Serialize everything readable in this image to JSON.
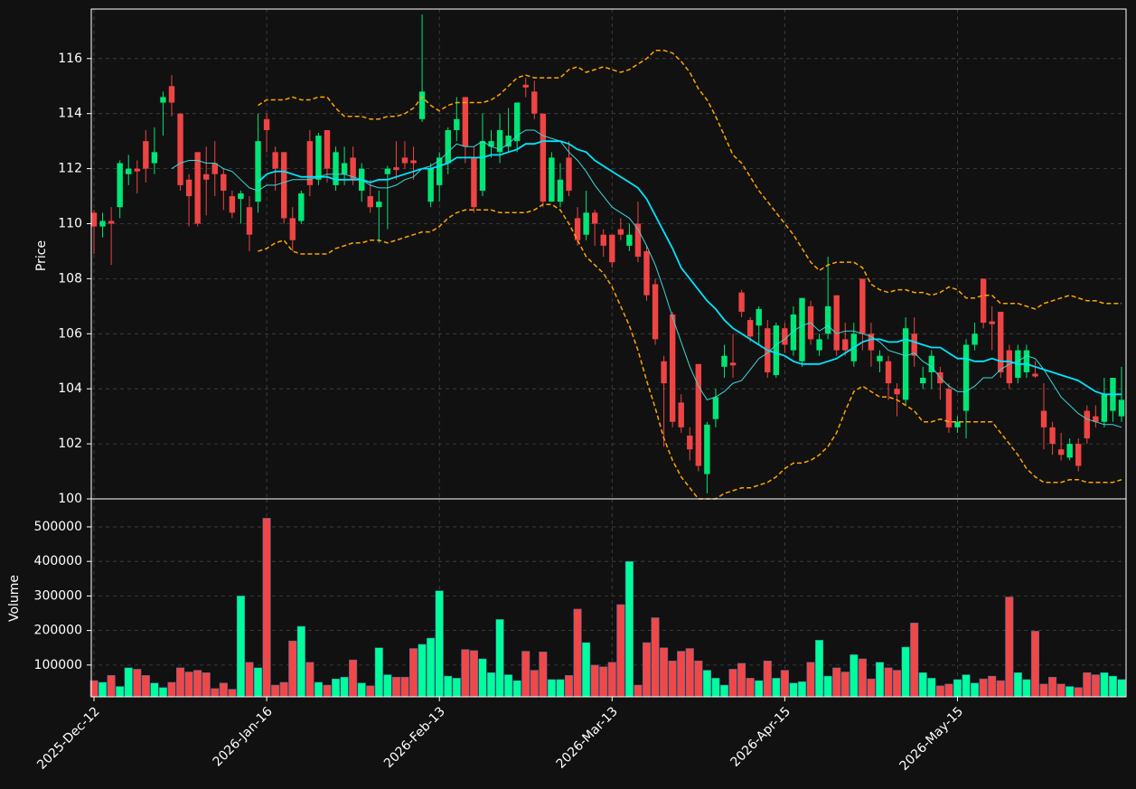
{
  "chart_data": {
    "type": "candlestick",
    "ylabel": "Price",
    "volume_ylabel": "Volume",
    "ylim": [
      100,
      117.8
    ],
    "yticks": [
      100,
      102,
      104,
      106,
      108,
      110,
      112,
      114,
      116
    ],
    "volume_ylim": [
      8000,
      581000
    ],
    "volume_yticks": [
      100000,
      200000,
      300000,
      400000,
      500000
    ],
    "grid": true,
    "up_color": "#00e676",
    "down_color": "#ef4444",
    "volume_up_color": "#00ff9c",
    "volume_down_color": "#f04848",
    "categories": [
      "2025-Dec-12",
      null,
      null,
      null,
      null,
      null,
      null,
      null,
      null,
      null,
      null,
      null,
      null,
      null,
      null,
      null,
      null,
      null,
      null,
      null,
      "2026-Jan-16",
      null,
      null,
      null,
      null,
      null,
      null,
      null,
      null,
      null,
      null,
      null,
      null,
      null,
      null,
      null,
      null,
      null,
      null,
      null,
      "2026-Feb-13",
      null,
      null,
      null,
      null,
      null,
      null,
      null,
      null,
      null,
      null,
      null,
      null,
      null,
      null,
      null,
      null,
      null,
      null,
      null,
      "2026-Mar-13",
      null,
      null,
      null,
      null,
      null,
      null,
      null,
      null,
      null,
      null,
      null,
      null,
      null,
      null,
      null,
      null,
      null,
      null,
      null,
      "2026-Apr-15",
      null,
      null,
      null,
      null,
      null,
      null,
      null,
      null,
      null,
      null,
      null,
      null,
      null,
      null,
      null,
      null,
      null,
      null,
      null,
      "2026-May-15",
      null,
      null,
      null,
      null,
      null,
      null,
      null,
      null,
      null,
      null,
      null,
      null,
      null,
      null,
      null,
      null,
      null,
      null,
      null
    ],
    "open": [
      110.4,
      109.9,
      110.1,
      110.6,
      111.8,
      112.0,
      113.0,
      112.2,
      114.4,
      115.0,
      114.0,
      111.6,
      112.6,
      111.8,
      112.2,
      111.8,
      111.0,
      110.9,
      110.6,
      110.8,
      113.8,
      112.6,
      112.6,
      110.2,
      110.1,
      113.0,
      111.6,
      113.4,
      111.4,
      111.8,
      112.4,
      111.2,
      111.0,
      110.6,
      111.8,
      112.05,
      112.4,
      112.3,
      113.8,
      110.8,
      111.4,
      112.2,
      113.4,
      114.6,
      112.4,
      111.2,
      112.8,
      112.6,
      112.8,
      113.0,
      115.05,
      114.8,
      114.0,
      110.8,
      110.8,
      112.4,
      110.2,
      109.6,
      110.4,
      109.6,
      109.6,
      109.8,
      109.2,
      110.0,
      109.0,
      107.8,
      105.0,
      106.7,
      103.5,
      102.3,
      104.9,
      100.9,
      102.9,
      104.8,
      104.95,
      107.5,
      106.5,
      106.3,
      106.2,
      104.5,
      106.2,
      105.4,
      105.0,
      107.0,
      105.4,
      106.0,
      107.4,
      105.8,
      105.0,
      108.0,
      106.0,
      105.0,
      105.0,
      104.0,
      103.6,
      106.0,
      104.2,
      104.6,
      104.6,
      104.0,
      102.6,
      103.2,
      105.6,
      108.0,
      106.45,
      106.8,
      105.4,
      104.4,
      104.6,
      104.55,
      103.2,
      102.6,
      101.8,
      101.5,
      102.0,
      103.2,
      103.0,
      102.8,
      103.2,
      103.0
    ],
    "high": [
      110.5,
      110.4,
      110.6,
      112.3,
      112.5,
      112.3,
      113.4,
      113.5,
      114.8,
      115.4,
      114.0,
      111.8,
      112.6,
      112.8,
      113.0,
      112.0,
      111.2,
      111.2,
      111.0,
      114.0,
      114.0,
      112.8,
      112.6,
      110.6,
      111.2,
      113.4,
      113.3,
      113.4,
      112.8,
      112.8,
      112.8,
      112.2,
      111.6,
      111.2,
      112.1,
      113.0,
      113.0,
      112.8,
      117.6,
      112.2,
      112.6,
      113.5,
      114.6,
      114.6,
      112.8,
      114.0,
      113.4,
      114.0,
      114.2,
      114.4,
      115.3,
      115.2,
      114.0,
      112.6,
      112.2,
      113.0,
      110.6,
      111.2,
      110.5,
      109.8,
      109.6,
      110.2,
      110.0,
      110.8,
      109.2,
      108.0,
      105.2,
      106.8,
      103.8,
      102.6,
      104.9,
      102.8,
      104.0,
      105.6,
      106.0,
      107.6,
      106.6,
      107.0,
      106.5,
      106.4,
      106.4,
      107.0,
      107.3,
      107.2,
      106.0,
      108.8,
      107.4,
      106.4,
      106.4,
      108.0,
      106.4,
      105.4,
      105.2,
      104.2,
      106.6,
      106.6,
      104.8,
      105.4,
      104.8,
      104.2,
      103.0,
      105.8,
      106.4,
      108.0,
      107.0,
      106.8,
      105.6,
      105.6,
      105.6,
      105.0,
      104.2,
      102.8,
      102.4,
      102.2,
      102.2,
      103.4,
      103.4,
      104.4,
      104.4,
      104.8
    ],
    "low": [
      108.9,
      109.5,
      108.5,
      110.2,
      111.4,
      111.1,
      111.5,
      111.8,
      113.2,
      113.9,
      111.2,
      109.9,
      109.9,
      110.3,
      111.0,
      110.5,
      110.2,
      110.0,
      109.0,
      110.4,
      112.6,
      111.2,
      110.0,
      109.0,
      110.0,
      111.0,
      111.4,
      111.5,
      111.2,
      111.4,
      111.4,
      110.8,
      110.4,
      109.3,
      109.8,
      111.6,
      112.0,
      111.6,
      113.7,
      110.6,
      110.8,
      111.8,
      113.0,
      112.2,
      110.4,
      111.0,
      112.4,
      112.2,
      112.6,
      112.6,
      114.6,
      113.8,
      110.6,
      110.8,
      110.6,
      111.0,
      109.2,
      109.4,
      109.2,
      108.8,
      108.4,
      109.4,
      109.0,
      108.6,
      107.2,
      105.6,
      101.9,
      102.6,
      102.4,
      101.4,
      101.0,
      100.2,
      102.6,
      104.4,
      104.4,
      106.6,
      105.7,
      105.6,
      104.4,
      104.4,
      105.3,
      105.2,
      104.8,
      105.6,
      105.2,
      105.8,
      105.2,
      105.2,
      104.8,
      105.4,
      104.8,
      104.6,
      103.6,
      103.0,
      103.4,
      104.8,
      104.0,
      104.0,
      103.6,
      102.4,
      102.4,
      102.2,
      105.4,
      106.2,
      105.4,
      104.4,
      104.0,
      104.2,
      104.4,
      104.4,
      101.8,
      101.6,
      101.4,
      101.4,
      101.0,
      102.0,
      102.6,
      102.6,
      102.8,
      102.8
    ],
    "close": [
      109.9,
      110.1,
      110.0,
      112.2,
      112.0,
      111.9,
      112.0,
      112.6,
      114.6,
      114.4,
      111.4,
      111.0,
      110.0,
      111.6,
      111.8,
      111.2,
      110.4,
      111.1,
      109.6,
      113.0,
      113.4,
      112.0,
      110.2,
      109.4,
      111.1,
      111.4,
      113.2,
      112.0,
      112.6,
      112.2,
      111.6,
      112.0,
      110.6,
      110.8,
      112.0,
      111.95,
      112.2,
      112.2,
      114.8,
      112.0,
      112.4,
      113.4,
      113.8,
      112.8,
      110.6,
      113.0,
      113.0,
      113.4,
      113.2,
      114.4,
      114.95,
      114.0,
      110.8,
      112.4,
      111.6,
      111.2,
      109.4,
      110.4,
      110.0,
      109.2,
      108.6,
      109.6,
      109.6,
      108.8,
      107.4,
      105.8,
      104.2,
      102.8,
      102.6,
      101.8,
      101.2,
      102.7,
      103.7,
      105.2,
      104.85,
      106.8,
      105.9,
      106.9,
      104.6,
      106.3,
      105.6,
      106.7,
      107.3,
      105.8,
      105.8,
      107.0,
      105.4,
      105.4,
      106.0,
      106.0,
      105.4,
      105.2,
      104.2,
      103.8,
      106.2,
      105.2,
      104.4,
      105.2,
      104.2,
      102.6,
      102.8,
      105.6,
      106.0,
      106.4,
      106.35,
      104.6,
      104.2,
      105.4,
      105.4,
      104.45,
      102.6,
      102.0,
      101.6,
      102.0,
      101.2,
      102.2,
      102.8,
      103.8,
      104.4,
      103.6
    ],
    "volume": [
      55000,
      50000,
      70000,
      38000,
      92000,
      88000,
      70000,
      48000,
      35000,
      50000,
      92000,
      80000,
      85000,
      78000,
      32000,
      48000,
      30000,
      300000,
      108000,
      92000,
      525000,
      42000,
      50000,
      170000,
      212000,
      108000,
      50000,
      42000,
      60000,
      65000,
      115000,
      48000,
      40000,
      150000,
      72000,
      65000,
      65000,
      148000,
      160000,
      178000,
      315000,
      68000,
      62000,
      145000,
      142000,
      118000,
      78000,
      232000,
      72000,
      55000,
      140000,
      85000,
      138000,
      58000,
      58000,
      70000,
      262000,
      165000,
      100000,
      95000,
      108000,
      275000,
      400000,
      42000,
      165000,
      237000,
      150000,
      112000,
      140000,
      148000,
      112000,
      85000,
      62000,
      42000,
      88000,
      105000,
      62000,
      55000,
      112000,
      62000,
      85000,
      48000,
      52000,
      108000,
      172000,
      68000,
      92000,
      80000,
      130000,
      118000,
      60000,
      108000,
      92000,
      85000,
      152000,
      222000,
      78000,
      62000,
      40000,
      45000,
      58000,
      72000,
      48000,
      60000,
      68000,
      55000,
      297000,
      78000,
      58000,
      198000,
      45000,
      65000,
      45000,
      38000,
      35000,
      78000,
      72000,
      78000,
      68000,
      58000
    ],
    "series": [
      {
        "color": "#3ad8d8",
        "linewidth": 1,
        "dash": false,
        "values": [
          null,
          null,
          null,
          null,
          null,
          null,
          null,
          null,
          null,
          112.0,
          112.2,
          112.3,
          112.3,
          112.2,
          112.2,
          112.0,
          111.9,
          111.6,
          111.3,
          111.2,
          111.4,
          111.4,
          111.5,
          111.6,
          111.6,
          111.6,
          111.7,
          111.8,
          111.8,
          111.8,
          111.7,
          111.6,
          111.4,
          111.3,
          111.3,
          111.4,
          111.6,
          111.7,
          112.0,
          112.1,
          112.3,
          112.6,
          112.9,
          112.8,
          112.8,
          113.0,
          112.8,
          112.7,
          112.9,
          113.2,
          113.4,
          113.4,
          113.2,
          113.1,
          113.0,
          112.6,
          112.3,
          111.9,
          111.4,
          111.0,
          110.6,
          110.4,
          110.2,
          109.8,
          109.2,
          108.5,
          107.6,
          106.6,
          105.7,
          104.8,
          104.1,
          103.6,
          103.7,
          103.9,
          104.2,
          104.3,
          104.7,
          105.1,
          105.3,
          105.6,
          105.8,
          106.1,
          106.3,
          106.4,
          106.1,
          106.3,
          106.0,
          106.1,
          106.1,
          106.0,
          105.9,
          105.7,
          105.4,
          105.3,
          105.2,
          105.3,
          105.0,
          104.8,
          104.4,
          104.1,
          103.9,
          103.9,
          104.1,
          104.4,
          104.4,
          104.7,
          104.9,
          105.0,
          105.2,
          105.1,
          104.7,
          104.2,
          103.7,
          103.4,
          103.1,
          102.9,
          102.8,
          102.7,
          102.7,
          102.6
        ]
      },
      {
        "color": "#00e5ff",
        "linewidth": 1.8,
        "dash": false,
        "values": [
          null,
          null,
          null,
          null,
          null,
          null,
          null,
          null,
          null,
          null,
          null,
          null,
          null,
          null,
          null,
          null,
          null,
          null,
          null,
          111.5,
          111.8,
          111.9,
          111.9,
          111.8,
          111.7,
          111.7,
          111.7,
          111.7,
          111.6,
          111.6,
          111.6,
          111.6,
          111.5,
          111.6,
          111.6,
          111.7,
          111.8,
          111.9,
          112.0,
          112.0,
          112.1,
          112.2,
          112.4,
          112.4,
          112.4,
          112.4,
          112.5,
          112.5,
          112.6,
          112.7,
          112.9,
          112.9,
          113.0,
          113.0,
          113.0,
          112.9,
          112.7,
          112.6,
          112.3,
          112.1,
          111.9,
          111.7,
          111.5,
          111.3,
          110.9,
          110.3,
          109.7,
          109.1,
          108.4,
          108.0,
          107.6,
          107.2,
          106.9,
          106.5,
          106.2,
          106.0,
          105.8,
          105.6,
          105.4,
          105.3,
          105.2,
          105.0,
          104.9,
          104.9,
          104.9,
          105.0,
          105.1,
          105.3,
          105.5,
          105.7,
          105.8,
          105.8,
          105.7,
          105.7,
          105.8,
          105.7,
          105.6,
          105.5,
          105.5,
          105.3,
          105.1,
          105.1,
          105.0,
          105.0,
          105.1,
          105.0,
          105.0,
          104.9,
          104.9,
          104.8,
          104.7,
          104.6,
          104.5,
          104.4,
          104.3,
          104.1,
          103.9,
          103.8,
          103.8,
          103.8
        ]
      },
      {
        "color": "#ffa500",
        "linewidth": 1.5,
        "dash": true,
        "values": [
          null,
          null,
          null,
          null,
          null,
          null,
          null,
          null,
          null,
          null,
          null,
          null,
          null,
          null,
          null,
          null,
          null,
          null,
          null,
          114.3,
          114.5,
          114.5,
          114.5,
          114.6,
          114.5,
          114.5,
          114.6,
          114.6,
          114.2,
          113.9,
          113.9,
          113.9,
          113.8,
          113.8,
          113.9,
          113.9,
          114.0,
          114.2,
          114.6,
          114.3,
          114.1,
          114.3,
          114.4,
          114.4,
          114.4,
          114.4,
          114.5,
          114.7,
          115.0,
          115.3,
          115.4,
          115.3,
          115.3,
          115.3,
          115.3,
          115.6,
          115.7,
          115.5,
          115.6,
          115.7,
          115.6,
          115.5,
          115.6,
          115.8,
          116.0,
          116.3,
          116.3,
          116.2,
          115.9,
          115.5,
          114.9,
          114.5,
          113.9,
          113.2,
          112.5,
          112.2,
          111.7,
          111.2,
          110.8,
          110.4,
          110.0,
          109.6,
          109.1,
          108.6,
          108.3,
          108.5,
          108.6,
          108.6,
          108.6,
          108.4,
          107.8,
          107.6,
          107.5,
          107.6,
          107.6,
          107.5,
          107.5,
          107.4,
          107.5,
          107.7,
          107.6,
          107.3,
          107.3,
          107.4,
          107.4,
          107.1,
          107.1,
          107.1,
          107.0,
          106.9,
          107.1,
          107.2,
          107.3,
          107.4,
          107.3,
          107.2,
          107.2,
          107.1,
          107.1,
          107.1
        ]
      },
      {
        "color": "#ffa500",
        "linewidth": 1.5,
        "dash": true,
        "values": [
          null,
          null,
          null,
          null,
          null,
          null,
          null,
          null,
          null,
          null,
          null,
          null,
          null,
          null,
          null,
          null,
          null,
          null,
          null,
          109.0,
          109.1,
          109.3,
          109.4,
          109.0,
          108.9,
          108.9,
          108.9,
          108.9,
          109.1,
          109.2,
          109.3,
          109.3,
          109.4,
          109.4,
          109.3,
          109.4,
          109.5,
          109.6,
          109.7,
          109.7,
          109.9,
          110.2,
          110.4,
          110.5,
          110.5,
          110.5,
          110.5,
          110.4,
          110.4,
          110.4,
          110.4,
          110.5,
          110.7,
          110.7,
          110.5,
          110.0,
          109.4,
          108.8,
          108.5,
          108.2,
          107.7,
          107.0,
          106.3,
          105.4,
          104.3,
          103.3,
          102.2,
          101.4,
          100.8,
          100.4,
          100.0,
          100.0,
          100.0,
          100.2,
          100.3,
          100.4,
          100.4,
          100.5,
          100.6,
          100.8,
          101.1,
          101.3,
          101.3,
          101.4,
          101.6,
          101.9,
          102.4,
          103.2,
          103.9,
          104.1,
          103.9,
          103.7,
          103.7,
          103.6,
          103.4,
          103.2,
          102.8,
          102.8,
          102.9,
          102.8,
          102.8,
          102.8,
          102.8,
          102.8,
          102.8,
          102.4,
          102.0,
          101.6,
          101.1,
          100.8,
          100.6,
          100.6,
          100.6,
          100.7,
          100.7,
          100.6,
          100.6,
          100.6,
          100.6,
          100.7
        ]
      }
    ]
  }
}
